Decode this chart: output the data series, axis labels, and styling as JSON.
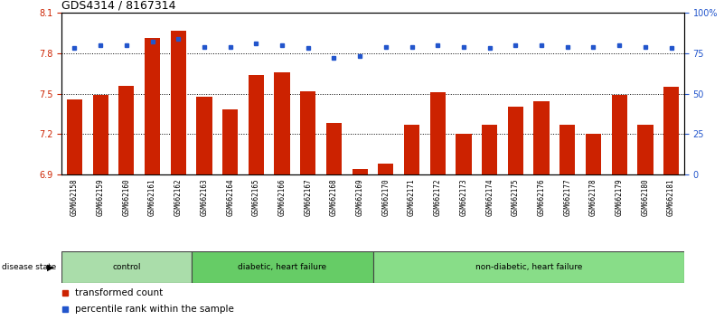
{
  "title": "GDS4314 / 8167314",
  "samples": [
    "GSM662158",
    "GSM662159",
    "GSM662160",
    "GSM662161",
    "GSM662162",
    "GSM662163",
    "GSM662164",
    "GSM662165",
    "GSM662166",
    "GSM662167",
    "GSM662168",
    "GSM662169",
    "GSM662170",
    "GSM662171",
    "GSM662172",
    "GSM662173",
    "GSM662174",
    "GSM662175",
    "GSM662176",
    "GSM662177",
    "GSM662178",
    "GSM662179",
    "GSM662180",
    "GSM662181"
  ],
  "bar_values": [
    7.46,
    7.49,
    7.56,
    7.91,
    7.97,
    7.48,
    7.38,
    7.64,
    7.66,
    7.52,
    7.28,
    6.94,
    6.98,
    7.27,
    7.51,
    7.2,
    7.27,
    7.4,
    7.44,
    7.27,
    7.2,
    7.49,
    7.27,
    7.55
  ],
  "percentile_values": [
    78,
    80,
    80,
    82,
    84,
    79,
    79,
    81,
    80,
    78,
    72,
    73,
    79,
    79,
    80,
    79,
    78,
    80,
    80,
    79,
    79,
    80,
    79,
    78
  ],
  "bar_color": "#cc2200",
  "percentile_color": "#2255cc",
  "ylim_left": [
    6.9,
    8.1
  ],
  "ylim_right": [
    0,
    100
  ],
  "yticks_left": [
    6.9,
    7.2,
    7.5,
    7.8,
    8.1
  ],
  "yticks_right": [
    0,
    25,
    50,
    75,
    100
  ],
  "ytick_labels_right": [
    "0",
    "25",
    "50",
    "75",
    "100%"
  ],
  "groups": [
    {
      "label": "control",
      "start": 0,
      "end": 5,
      "color": "#aaddaa"
    },
    {
      "label": "diabetic, heart failure",
      "start": 5,
      "end": 12,
      "color": "#66cc66"
    },
    {
      "label": "non-diabetic, heart failure",
      "start": 12,
      "end": 24,
      "color": "#88dd88"
    }
  ],
  "legend_bar_label": "transformed count",
  "legend_pct_label": "percentile rank within the sample",
  "disease_state_label": "disease state",
  "tick_area_color": "#c8c8c8"
}
